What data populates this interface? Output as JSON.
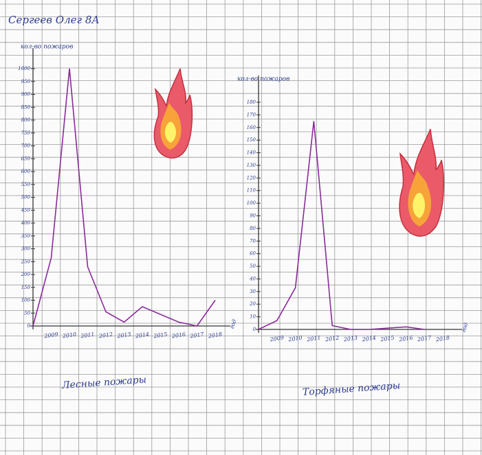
{
  "title": "Сергеев Олег 8А",
  "chart_data": [
    {
      "type": "line",
      "y_label": "кол-во пожаров",
      "x_label": "год",
      "caption": "Лесные пожары",
      "categories": [
        null,
        "2009",
        "2010",
        "2011",
        "2012",
        "2013",
        "2014",
        "2015",
        "2016",
        "2017",
        "2018"
      ],
      "values": [
        0,
        265,
        1000,
        230,
        55,
        15,
        75,
        45,
        15,
        0,
        100
      ],
      "color": "#8a2a9a",
      "ylim": [
        0,
        1000
      ],
      "yticks": [
        0,
        50,
        100,
        150,
        200,
        250,
        300,
        350,
        400,
        450,
        500,
        550,
        600,
        650,
        700,
        750,
        800,
        850,
        900,
        950,
        1000
      ]
    },
    {
      "type": "line",
      "y_label": "кол-во пожаров",
      "x_label": "год",
      "caption": "Торфяные пожары",
      "categories": [
        null,
        "2009",
        "2010",
        "2011",
        "2012",
        "2013",
        "2014",
        "2015",
        "2016",
        "2017",
        "2018"
      ],
      "values": [
        0,
        7,
        33,
        165,
        3,
        0,
        0,
        1,
        2,
        0,
        null
      ],
      "color": "#8a2a9a",
      "ylim": [
        0,
        180
      ],
      "yticks": [
        0,
        10,
        20,
        30,
        40,
        50,
        60,
        70,
        80,
        90,
        100,
        110,
        120,
        130,
        140,
        150,
        160,
        170,
        180
      ]
    }
  ]
}
